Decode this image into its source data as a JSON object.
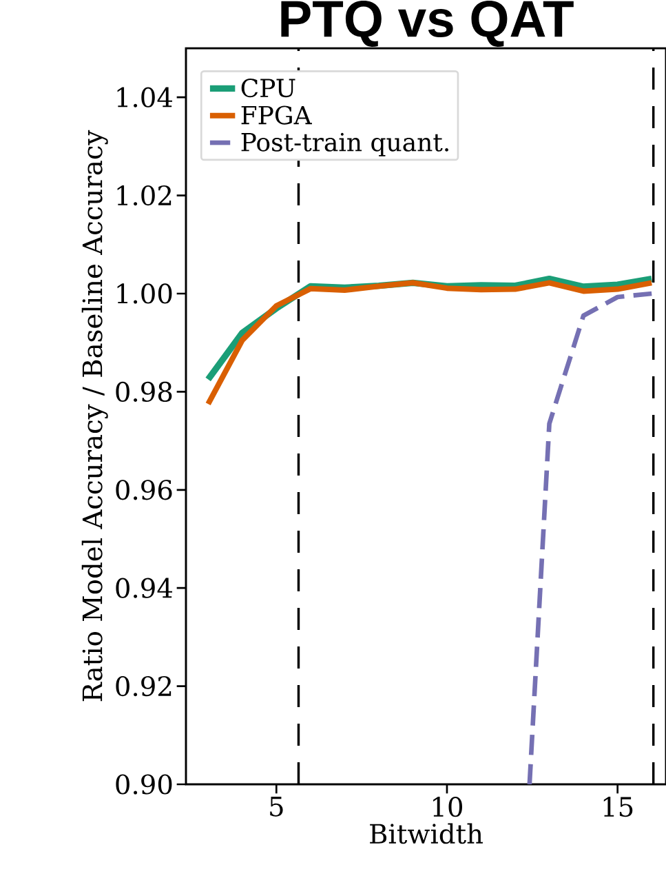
{
  "chart_data": {
    "type": "line",
    "title": "PTQ vs QAT",
    "xlabel": "Bitwidth",
    "ylabel": "Ratio Model Accuracy / Baseline Accuracy",
    "xlim": [
      2.35,
      16.42
    ],
    "ylim": [
      0.9,
      1.05
    ],
    "xticks": [
      5,
      10,
      15
    ],
    "yticks": [
      {
        "value": 0.9,
        "label": "0.90"
      },
      {
        "value": 0.92,
        "label": "0.92"
      },
      {
        "value": 0.94,
        "label": "0.94"
      },
      {
        "value": 0.96,
        "label": "0.96"
      },
      {
        "value": 0.98,
        "label": "0.98"
      },
      {
        "value": 1.0,
        "label": "1.00"
      },
      {
        "value": 1.02,
        "label": "1.02"
      },
      {
        "value": 1.04,
        "label": "1.04"
      }
    ],
    "legend": "top left",
    "series": [
      {
        "name": "CPU",
        "color": "#1b9e77",
        "line_style": "solid",
        "x": [
          3,
          4,
          5,
          6,
          7,
          8,
          9,
          10,
          11,
          12,
          13,
          14,
          15,
          16
        ],
        "values": [
          0.9825,
          0.992,
          0.997,
          1.0015,
          1.0012,
          1.0016,
          1.0022,
          1.0015,
          1.0017,
          1.0016,
          1.003,
          1.0014,
          1.0018,
          1.003
        ]
      },
      {
        "name": "FPGA",
        "color": "#d95f02",
        "line_style": "solid",
        "x": [
          3,
          4,
          5,
          6,
          7,
          8,
          9,
          10,
          11,
          12,
          13,
          14,
          15,
          16
        ],
        "values": [
          0.9775,
          0.9905,
          0.9975,
          1.001,
          1.0007,
          1.0015,
          1.0022,
          1.0011,
          1.0008,
          1.0009,
          1.0022,
          1.0005,
          1.0009,
          1.0022
        ]
      },
      {
        "name": "Post-train quant.",
        "color": "#7570b3",
        "line_style": "dashed",
        "x": [
          12.42,
          13,
          14,
          15,
          16
        ],
        "values": [
          0.9,
          0.9735,
          0.9955,
          0.9993,
          1.0
        ]
      }
    ],
    "ref_lines": [
      {
        "axis": "x",
        "value": 5.65,
        "color": "#000000",
        "line_style": "dashed"
      },
      {
        "axis": "x",
        "value": 16.05,
        "color": "#000000",
        "line_style": "dashed"
      }
    ]
  }
}
